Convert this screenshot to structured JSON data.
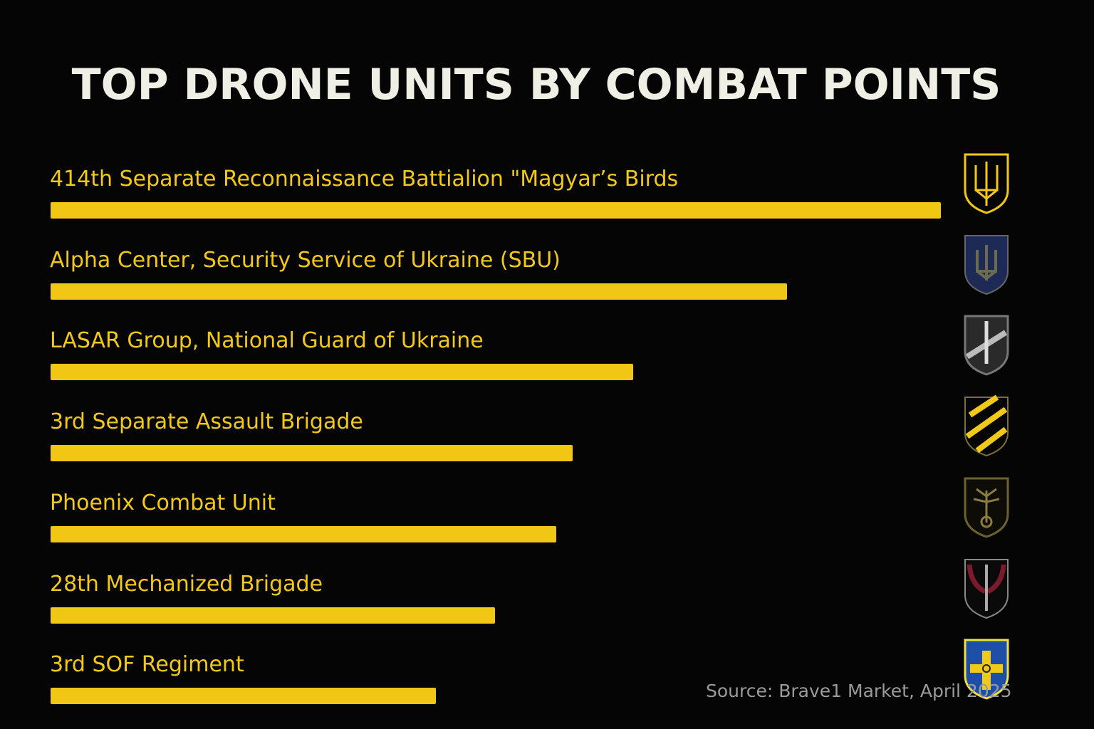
{
  "chart_data": {
    "type": "bar",
    "orientation": "horizontal",
    "title": "TOP DRONE UNITS BY COMBAT POINTS",
    "xlabel": "",
    "ylabel": "",
    "xlim": [
      0,
      100
    ],
    "value_note": "relative bar length, no axis shown",
    "categories": [
      "414th Separate Reconnaissance Battialion \"Magyar’s Birds",
      "Alpha Center, Security Service of Ukraine (SBU)",
      "LASAR Group, National Guard of Ukraine",
      "3rd Separate Assault Brigade",
      "Phoenix Combat Unit",
      "28th Mechanized Brigade",
      "3rd SOF Regiment"
    ],
    "values": [
      100,
      82.7,
      65.4,
      58.6,
      56.8,
      49.9,
      43.3
    ],
    "emblems": [
      "trident-shield-icon",
      "sbu-shield-icon",
      "lasar-shield-icon",
      "striped-shield-icon",
      "phoenix-tree-shield-icon",
      "winged-sword-shield-icon",
      "cross-shield-icon"
    ],
    "bar_color": "#f1c615",
    "source": "Source: Brave1 Market, April 2025"
  }
}
